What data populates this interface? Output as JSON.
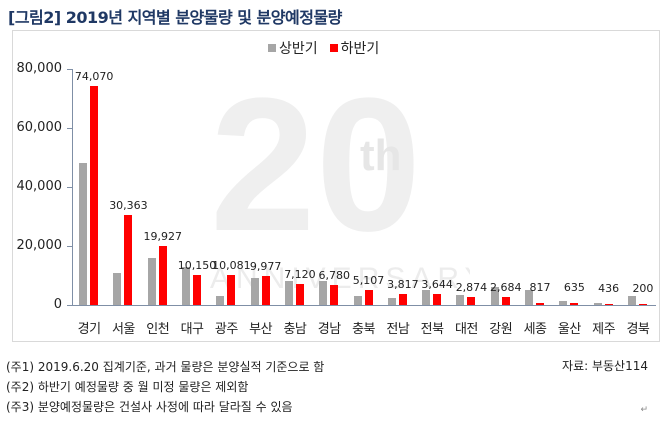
{
  "title": "[그림2] 2019년 지역별 분양물량 및 분양예정물량",
  "legend": [
    {
      "label": "상반기",
      "color": "#a6a6a6"
    },
    {
      "label": "하반기",
      "color": "#ff0000"
    }
  ],
  "watermark": {
    "big_text": "20",
    "sup_text": "th",
    "sub_text": "ANNIVERSARY"
  },
  "y_ticks": [
    "80,000",
    "60,000",
    "40,000",
    "20,000",
    "0"
  ],
  "notes": [
    "(주1) 2019.6.20 집계기준, 과거 물량은 분양실적 기준으로 함",
    "(주2) 하반기 예정물량 중 월 미정 물량은 제외함",
    "(주3) 분양예정물량은 건설사 사정에 따라 달라질 수 있음"
  ],
  "source": "자료: 부동산114",
  "para_mark": "↵",
  "chart_data": {
    "type": "bar",
    "title": "2019년 지역별 분양물량 및 분양예정물량",
    "xlabel": "",
    "ylabel": "",
    "ylim": [
      0,
      80000
    ],
    "y_ticks": [
      0,
      20000,
      40000,
      60000,
      80000
    ],
    "grid": false,
    "legend_position": "top",
    "categories": [
      "경기",
      "서울",
      "인천",
      "대구",
      "광주",
      "부산",
      "충남",
      "경남",
      "충북",
      "전남",
      "전북",
      "대전",
      "강원",
      "세종",
      "울산",
      "제주",
      "경북"
    ],
    "series": [
      {
        "name": "상반기",
        "color": "#a6a6a6",
        "values": [
          48000,
          11000,
          16000,
          13000,
          3000,
          9000,
          8000,
          8000,
          3000,
          2500,
          5000,
          3500,
          6000,
          5000,
          1200,
          600,
          3000
        ]
      },
      {
        "name": "하반기",
        "color": "#ff0000",
        "values": [
          74070,
          30363,
          19927,
          10150,
          10081,
          9977,
          7120,
          6780,
          5107,
          3817,
          3644,
          2874,
          2684,
          817,
          635,
          436,
          200
        ]
      }
    ],
    "data_labels": [
      "74,070",
      "30,363",
      "19,927",
      "10,150",
      "10,081",
      "9,977",
      "7,120",
      "6,780",
      "5,107",
      "3,817",
      "3,644",
      "2,874",
      "2,684",
      "817",
      "635",
      "436",
      "200"
    ]
  }
}
